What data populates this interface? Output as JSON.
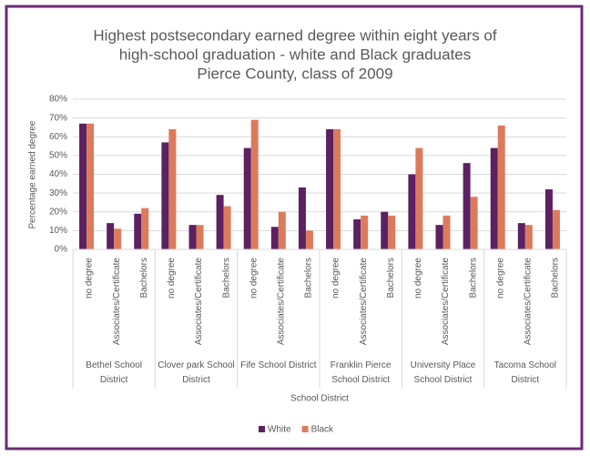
{
  "chart_data": {
    "type": "bar",
    "title": [
      "Highest postsecondary earned degree within eight years of",
      "high-school graduation - white and Black graduates",
      "Pierce County, class of 2009"
    ],
    "y_label": "Percentage earned degree",
    "x_label": "School District",
    "groups": [
      "Bethel School District",
      "Clover park School District",
      "Fife School District",
      "Franklin Pierce School District",
      "University Place School District",
      "Tacoma School District"
    ],
    "categories": [
      "no degree",
      "Associates/Certificate",
      "Bachelors",
      "no degree",
      "Associates/Certificate",
      "Bachelors",
      "no degree",
      "Associates/Certificate",
      "Bachelors",
      "no degree",
      "Associates/Certificate",
      "Bachelors",
      "no degree",
      "Associates/Certificate",
      "Bachelors",
      "no degree",
      "Associates/Certificate",
      "Bachelors"
    ],
    "series": [
      {
        "name": "White",
        "color": "#5c2161",
        "values": [
          67,
          14,
          19,
          57,
          13,
          29,
          54,
          12,
          33,
          64,
          16,
          20,
          40,
          13,
          46,
          54,
          14,
          32
        ]
      },
      {
        "name": "Black",
        "color": "#dc7b5c",
        "values": [
          67,
          11,
          22,
          64,
          13,
          23,
          69,
          20,
          10,
          64,
          18,
          18,
          54,
          18,
          28,
          66,
          13,
          21
        ]
      }
    ],
    "ylim": [
      0,
      80
    ],
    "yticks": [
      {
        "value": 0,
        "label": "0%"
      },
      {
        "value": 10,
        "label": "10%"
      },
      {
        "value": 20,
        "label": "20%"
      },
      {
        "value": 30,
        "label": "30%"
      },
      {
        "value": 40,
        "label": "40%"
      },
      {
        "value": 50,
        "label": "50%"
      },
      {
        "value": 60,
        "label": "60%"
      },
      {
        "value": 70,
        "label": "70%"
      },
      {
        "value": 80,
        "label": "80%"
      }
    ],
    "grid": true,
    "legend": "bottom"
  }
}
